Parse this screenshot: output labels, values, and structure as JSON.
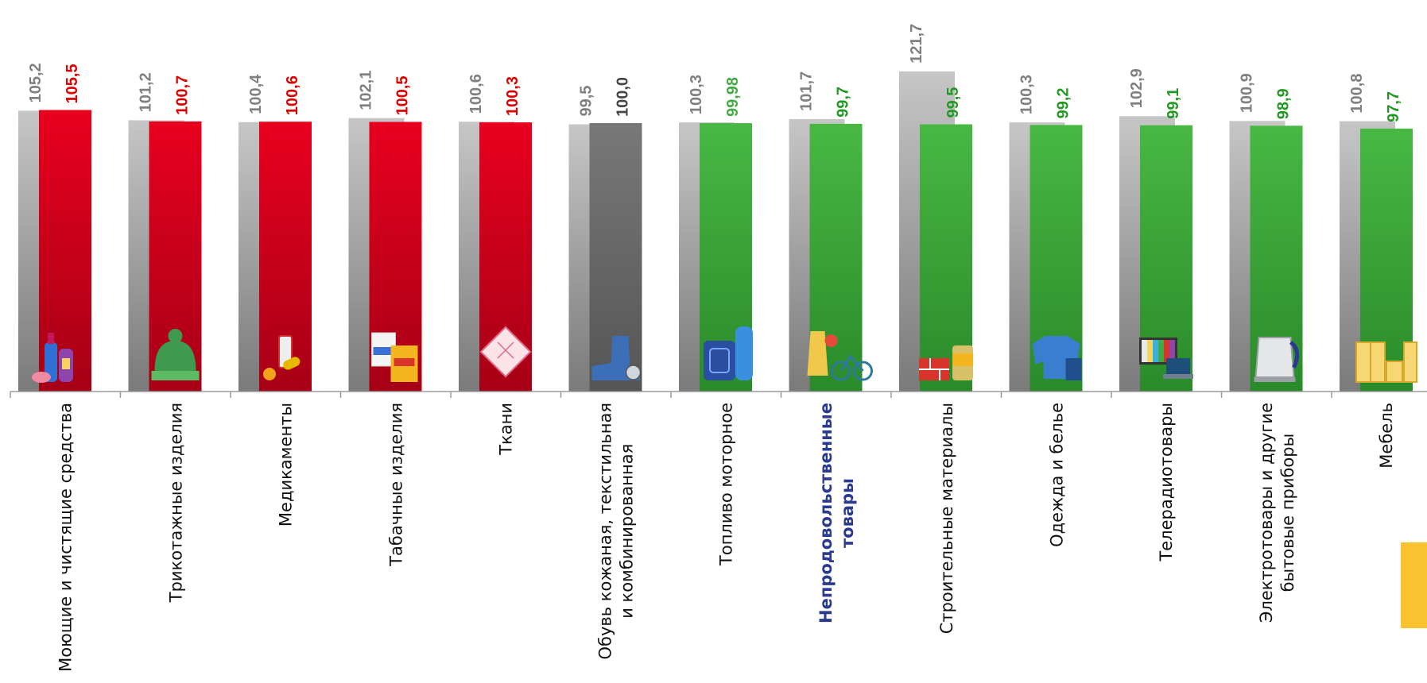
{
  "chart_data": {
    "type": "bar",
    "categories": [
      "Моющие и чистящие средства",
      "Трикотажные изделия",
      "Медикаменты",
      "Табачные изделия",
      "Ткани",
      "Обувь кожаная, текстильная\nи комбинированная",
      "Топливо моторное",
      "Непродовольственные\nтовары",
      "Строительные материалы",
      "Одежда и белье",
      "Телерадиотовары",
      "Электротовары и другие\nбытовые приборы",
      "Мебель"
    ],
    "highlight_category_index": 7,
    "series": [
      {
        "values": [
          105.2,
          101.2,
          100.4,
          102.1,
          100.6,
          99.5,
          100.3,
          101.7,
          121.7,
          100.3,
          102.9,
          100.9,
          100.8
        ],
        "labels": [
          "105,2",
          "101,2",
          "100,4",
          "102,1",
          "100,6",
          "99,5",
          "100,3",
          "101,7",
          "121,7",
          "100,3",
          "102,9",
          "100,9",
          "100,8"
        ],
        "color": "#8c8c8c"
      },
      {
        "values": [
          105.5,
          100.7,
          100.6,
          100.5,
          100.3,
          100.0,
          99.98,
          99.7,
          99.5,
          99.2,
          99.1,
          98.9,
          97.7
        ],
        "labels": [
          "105,5",
          "100,7",
          "100,6",
          "100,5",
          "100,3",
          "100,0",
          "99,98",
          "99,7",
          "99,5",
          "99,2",
          "99,1",
          "98,9",
          "97,7"
        ],
        "colors": [
          "red",
          "red",
          "red",
          "red",
          "red",
          "gray",
          "green",
          "green",
          "green",
          "green",
          "green",
          "green",
          "green"
        ]
      }
    ],
    "colors": {
      "red": "#e8001e",
      "gray": "#6e6e6e",
      "green": "#3aaa35",
      "previous": "#a8a8a8",
      "label_red": "#dd0000",
      "label_green": "#229922",
      "label_green_light": "#44aa44",
      "label_gray": "#808080",
      "label_dark": "#444444",
      "category_highlight": "#2b3a8f"
    },
    "icons": [
      "cleaning-products-icon",
      "knit-hat-icon",
      "medicine-icon",
      "cigarette-packs-icon",
      "fabric-icon",
      "boot-icon",
      "fuel-canister-icon",
      "coat-bicycle-icon",
      "bricks-paint-icon",
      "sweater-icon",
      "tv-laptop-icon",
      "electric-kettle-icon",
      "furniture-icon"
    ],
    "value_scale": "offset",
    "grid": false,
    "legend": "none"
  }
}
